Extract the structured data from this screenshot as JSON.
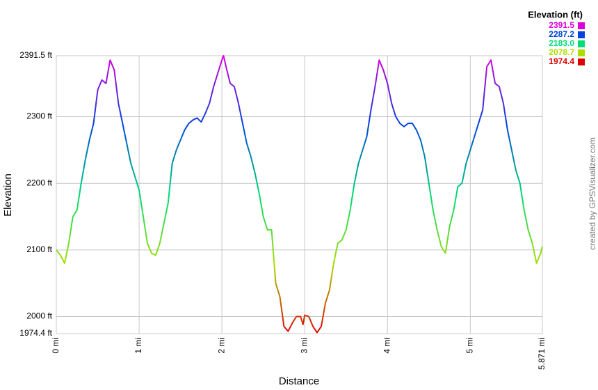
{
  "chart_data": {
    "type": "line",
    "y_label": "Elevation",
    "x_label": "Distance",
    "legend_title": "Elevation (ft)",
    "credit": "created by GPSVisualizer.com",
    "color_scale": [
      {
        "value": 2391.5,
        "label": "2391.5",
        "color": "#dd00dd"
      },
      {
        "value": 2287.2,
        "label": "2287.2",
        "color": "#0044dd"
      },
      {
        "value": 2183.0,
        "label": "2183.0",
        "color": "#00dd77"
      },
      {
        "value": 2078.7,
        "label": "2078.7",
        "color": "#aadd00"
      },
      {
        "value": 1974.4,
        "label": "1974.4",
        "color": "#dd0000"
      }
    ],
    "xlim": [
      0,
      5.871
    ],
    "ylim": [
      1974.4,
      2391.5
    ],
    "xticks": [
      {
        "value": 0,
        "label": "0 mi"
      },
      {
        "value": 1,
        "label": "1 mi"
      },
      {
        "value": 2,
        "label": "2 mi"
      },
      {
        "value": 3,
        "label": "3 mi"
      },
      {
        "value": 4,
        "label": "4 mi"
      },
      {
        "value": 5,
        "label": "5 mi"
      },
      {
        "value": 5.871,
        "label": "5.871 mi"
      }
    ],
    "yticks": [
      {
        "value": 1974.4,
        "label": "1974.4 ft"
      },
      {
        "value": 2000,
        "label": "2000 ft"
      },
      {
        "value": 2100,
        "label": "2100 ft"
      },
      {
        "value": 2200,
        "label": "2200 ft"
      },
      {
        "value": 2300,
        "label": "2300 ft"
      },
      {
        "value": 2391.5,
        "label": "2391.5 ft"
      }
    ],
    "grid": true,
    "x": [
      0,
      0.05,
      0.1,
      0.15,
      0.2,
      0.25,
      0.3,
      0.35,
      0.4,
      0.45,
      0.5,
      0.55,
      0.6,
      0.65,
      0.7,
      0.75,
      0.8,
      0.85,
      0.9,
      0.95,
      1,
      1.05,
      1.1,
      1.15,
      1.2,
      1.25,
      1.3,
      1.35,
      1.4,
      1.45,
      1.5,
      1.55,
      1.6,
      1.65,
      1.7,
      1.75,
      1.8,
      1.85,
      1.9,
      1.95,
      2,
      2.02,
      2.05,
      2.1,
      2.15,
      2.2,
      2.25,
      2.3,
      2.35,
      2.4,
      2.45,
      2.5,
      2.55,
      2.6,
      2.65,
      2.7,
      2.75,
      2.8,
      2.85,
      2.9,
      2.95,
      2.98,
      3,
      3.05,
      3.1,
      3.15,
      3.2,
      3.25,
      3.3,
      3.35,
      3.4,
      3.45,
      3.5,
      3.55,
      3.6,
      3.65,
      3.7,
      3.75,
      3.8,
      3.85,
      3.9,
      3.95,
      4,
      4.05,
      4.1,
      4.15,
      4.2,
      4.25,
      4.3,
      4.35,
      4.4,
      4.45,
      4.5,
      4.55,
      4.6,
      4.65,
      4.7,
      4.75,
      4.8,
      4.85,
      4.9,
      4.95,
      5,
      5.05,
      5.1,
      5.15,
      5.2,
      5.25,
      5.3,
      5.35,
      5.4,
      5.45,
      5.5,
      5.55,
      5.6,
      5.65,
      5.7,
      5.75,
      5.8,
      5.85,
      5.871
    ],
    "values": [
      2100,
      2092,
      2080,
      2110,
      2150,
      2160,
      2200,
      2235,
      2265,
      2290,
      2340,
      2355,
      2350,
      2385,
      2370,
      2320,
      2290,
      2260,
      2230,
      2210,
      2190,
      2150,
      2110,
      2095,
      2092,
      2110,
      2140,
      2170,
      2230,
      2250,
      2265,
      2280,
      2290,
      2295,
      2298,
      2292,
      2305,
      2320,
      2345,
      2365,
      2385,
      2391.5,
      2375,
      2350,
      2345,
      2320,
      2290,
      2260,
      2240,
      2215,
      2185,
      2150,
      2130,
      2130,
      2050,
      2030,
      1985,
      1978,
      1990,
      2000,
      2000,
      1988,
      2002,
      2000,
      1985,
      1976,
      1985,
      2020,
      2040,
      2080,
      2110,
      2115,
      2130,
      2160,
      2200,
      2230,
      2250,
      2270,
      2310,
      2345,
      2385,
      2370,
      2350,
      2320,
      2300,
      2290,
      2285,
      2290,
      2290,
      2280,
      2265,
      2240,
      2200,
      2160,
      2130,
      2105,
      2095,
      2135,
      2160,
      2195,
      2200,
      2230,
      2250,
      2270,
      2290,
      2310,
      2375,
      2385,
      2350,
      2345,
      2320,
      2280,
      2250,
      2220,
      2200,
      2160,
      2130,
      2110,
      2080,
      2095,
      2105
    ]
  }
}
